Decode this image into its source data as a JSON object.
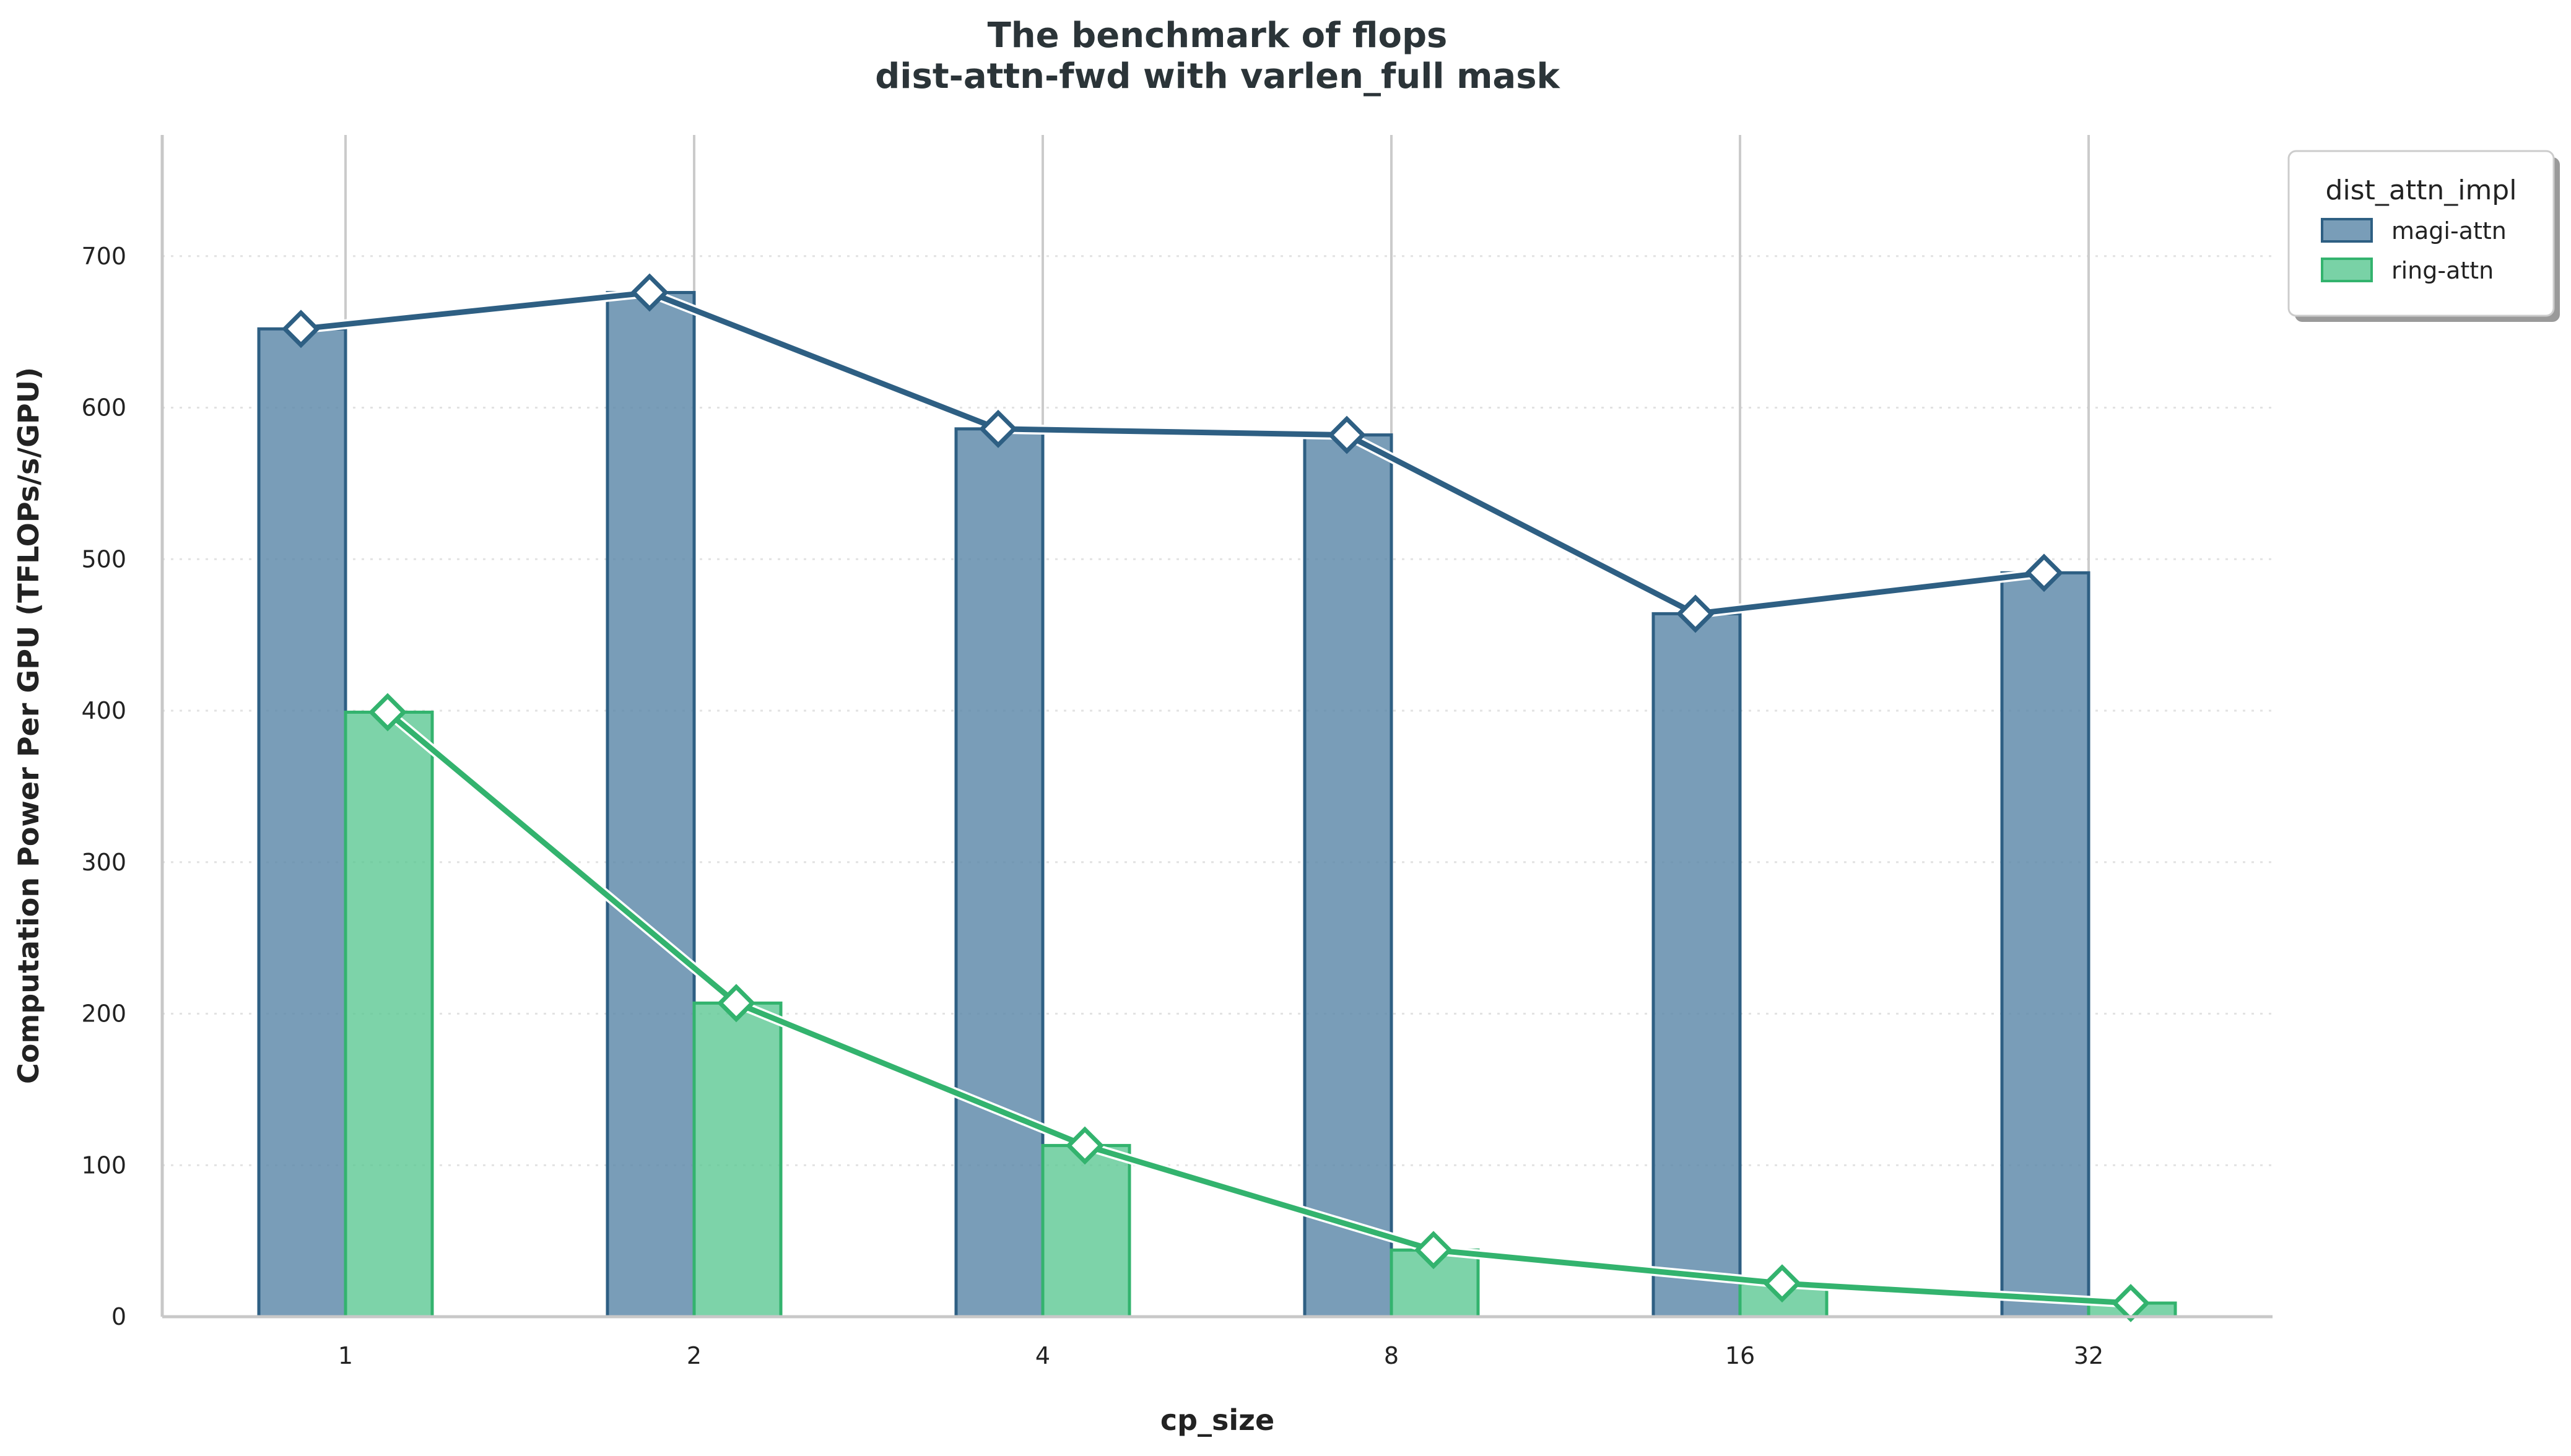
{
  "chart_data": {
    "type": "bar",
    "title": "The benchmark of flops",
    "subtitle": "dist-attn-fwd with varlen_full mask",
    "xlabel": "cp_size",
    "ylabel": "Computation Power Per GPU (TFLOPs/s/GPU)",
    "categories": [
      "1",
      "2",
      "4",
      "8",
      "16",
      "32"
    ],
    "ylim": [
      0,
      780
    ],
    "yticks": [
      0,
      100,
      200,
      300,
      400,
      500,
      600,
      700
    ],
    "grid": "horizontal dotted",
    "legend": {
      "title": "dist_attn_impl",
      "placement": "outside top-right"
    },
    "series": [
      {
        "name": "magi-attn",
        "values": [
          652,
          676,
          586,
          582,
          464,
          491
        ],
        "bar_color": "#5c87a8",
        "line_color": "#2e5f83"
      },
      {
        "name": "ring-attn",
        "values": [
          399,
          207,
          113,
          44,
          22,
          9
        ],
        "bar_color": "#5cc893",
        "line_color": "#33b36e"
      }
    ],
    "line_overlay": {
      "marker": "diamond",
      "marker_fill": "#ffffff"
    }
  }
}
